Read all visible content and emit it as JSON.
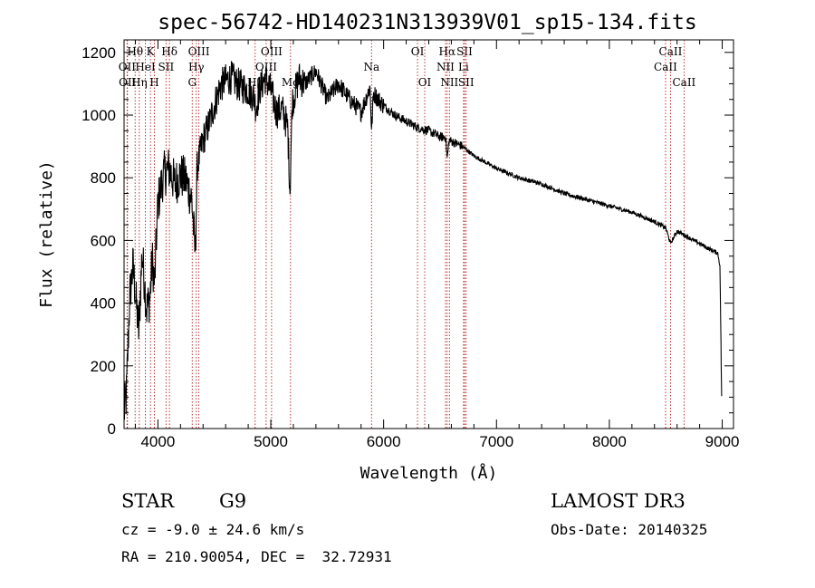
{
  "chart_data": {
    "type": "line",
    "title": "spec-56742-HD140231N313939V01_sp15-134.fits",
    "xlabel": "Wavelength (Å)",
    "ylabel": "Flux (relative)",
    "xlim": [
      3700,
      9100
    ],
    "ylim": [
      0,
      1240
    ],
    "xticks": [
      4000,
      5000,
      6000,
      7000,
      8000,
      9000
    ],
    "yticks": [
      0,
      200,
      400,
      600,
      800,
      1000,
      1200
    ],
    "spectrum_anchors": {
      "x": [
        3700,
        3720,
        3750,
        3780,
        3800,
        3830,
        3860,
        3880,
        3900,
        3930,
        3950,
        3970,
        4000,
        4050,
        4100,
        4150,
        4200,
        4250,
        4300,
        4330,
        4350,
        4400,
        4450,
        4500,
        4550,
        4600,
        4650,
        4700,
        4750,
        4800,
        4850,
        4870,
        4900,
        4950,
        5000,
        5050,
        5100,
        5150,
        5170,
        5190,
        5250,
        5300,
        5400,
        5500,
        5600,
        5700,
        5800,
        5880,
        5893,
        5910,
        6000,
        6100,
        6200,
        6300,
        6400,
        6500,
        6550,
        6563,
        6580,
        6700,
        6800,
        7000,
        7200,
        7400,
        7600,
        7800,
        8000,
        8200,
        8400,
        8500,
        8542,
        8600,
        8700,
        8800,
        8900,
        8960,
        8980,
        8995
      ],
      "y": [
        50,
        100,
        420,
        520,
        430,
        310,
        560,
        470,
        380,
        420,
        540,
        460,
        720,
        810,
        830,
        780,
        810,
        790,
        730,
        560,
        840,
        920,
        970,
        1030,
        1090,
        1110,
        1120,
        1100,
        1090,
        1080,
        1060,
        1020,
        1080,
        1120,
        1080,
        1010,
        1020,
        960,
        760,
        1040,
        1120,
        1100,
        1140,
        1050,
        1100,
        1050,
        1010,
        1090,
        950,
        1070,
        1030,
        1000,
        980,
        960,
        950,
        930,
        930,
        860,
        920,
        900,
        870,
        830,
        800,
        780,
        750,
        730,
        710,
        690,
        660,
        640,
        590,
        630,
        610,
        590,
        570,
        560,
        520,
        100
      ]
    },
    "lines": [
      {
        "name": "Hθ",
        "x": 3798,
        "row": 0
      },
      {
        "name": "OII",
        "x": 3727,
        "row": 1
      },
      {
        "name": "OII",
        "x": 3730,
        "row": 2
      },
      {
        "name": "Hη",
        "x": 3835,
        "row": 2
      },
      {
        "name": "K",
        "x": 3934,
        "row": 0
      },
      {
        "name": "HeI",
        "x": 3889,
        "row": 1
      },
      {
        "name": "H",
        "x": 3969,
        "row": 2
      },
      {
        "name": "SII",
        "x": 4072,
        "row": 1
      },
      {
        "name": "Hδ",
        "x": 4102,
        "row": 0
      },
      {
        "name": "OIII",
        "x": 4363,
        "row": 0
      },
      {
        "name": "Hγ",
        "x": 4340,
        "row": 1
      },
      {
        "name": "G",
        "x": 4304,
        "row": 2
      },
      {
        "name": "Hβ",
        "x": 4861,
        "row": 2
      },
      {
        "name": "OIII",
        "x": 5007,
        "row": 0
      },
      {
        "name": "OIII",
        "x": 4959,
        "row": 1
      },
      {
        "name": "Mg",
        "x": 5175,
        "row": 2
      },
      {
        "name": "Na",
        "x": 5893,
        "row": 1
      },
      {
        "name": "OI",
        "x": 6300,
        "row": 0
      },
      {
        "name": "OI",
        "x": 6364,
        "row": 2
      },
      {
        "name": "Hα",
        "x": 6563,
        "row": 0
      },
      {
        "name": "NII",
        "x": 6548,
        "row": 1
      },
      {
        "name": "NII",
        "x": 6583,
        "row": 2
      },
      {
        "name": "SII",
        "x": 6717,
        "row": 0
      },
      {
        "name": "Li",
        "x": 6708,
        "row": 1
      },
      {
        "name": "SII",
        "x": 6731,
        "row": 2
      },
      {
        "name": "CaII",
        "x": 8542,
        "row": 0
      },
      {
        "name": "CaII",
        "x": 8498,
        "row": 1
      },
      {
        "name": "CaII",
        "x": 8662,
        "row": 2
      }
    ]
  },
  "info": {
    "object_type": "STAR",
    "subclass": "G9",
    "survey": "LAMOST DR3",
    "cz": "cz = -9.0 ± 24.6 km/s",
    "obs_date": "Obs-Date: 20140325",
    "coords": "RA = 210.90054, DEC =  32.72931"
  }
}
